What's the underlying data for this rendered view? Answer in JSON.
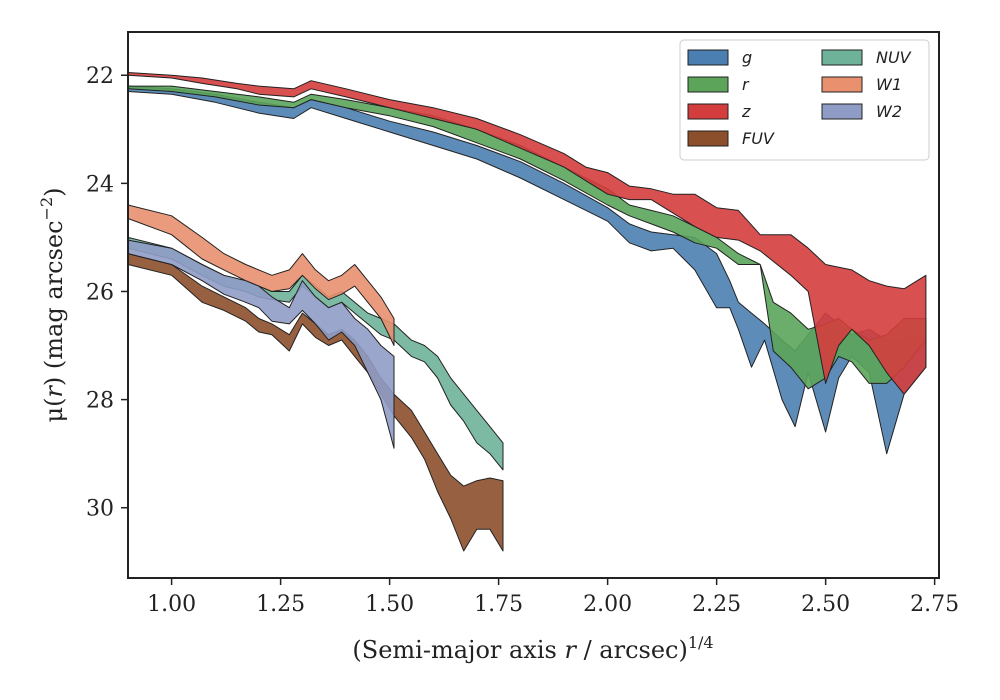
{
  "chart_data": {
    "type": "area",
    "xlabel": "(Semi-major axis r / arcsec)",
    "xlabel_parts": {
      "prefix": "(Semi-major axis ",
      "var": "r",
      "mid": " / arcsec)",
      "sup": "1/4"
    },
    "ylabel": "μ(r) (mag arcsec⁻²)",
    "ylabel_parts": {
      "pre": "μ(",
      "var": "r",
      "post": ") (mag arcsec",
      "sup": "−2",
      "end": ")"
    },
    "xlim": [
      0.9,
      2.76
    ],
    "ylim": [
      31.3,
      21.2
    ],
    "y_inverted": true,
    "xticks": [
      1.0,
      1.25,
      1.5,
      1.75,
      2.0,
      2.25,
      2.5,
      2.75
    ],
    "xtick_labels": [
      "1.00",
      "1.25",
      "1.50",
      "1.75",
      "2.00",
      "2.25",
      "2.50",
      "2.75"
    ],
    "yticks": [
      22,
      24,
      26,
      28,
      30
    ],
    "ytick_labels": [
      "22",
      "24",
      "26",
      "28",
      "30"
    ],
    "grid": false,
    "legend_position": "top-right",
    "legend_columns": 2,
    "series": [
      {
        "name": "FUV",
        "color": "#8c4f2c",
        "x": [
          0.9,
          1.0,
          1.07,
          1.12,
          1.17,
          1.2,
          1.23,
          1.27,
          1.3,
          1.33,
          1.36,
          1.39,
          1.42,
          1.45,
          1.48,
          1.51,
          1.55,
          1.58,
          1.61,
          1.64,
          1.67,
          1.7,
          1.73,
          1.76
        ],
        "lower": [
          25.3,
          25.5,
          25.9,
          26.1,
          26.3,
          26.5,
          26.6,
          26.8,
          26.4,
          26.6,
          26.8,
          26.7,
          26.9,
          27.2,
          27.6,
          27.9,
          28.2,
          28.6,
          29.0,
          29.4,
          29.6,
          29.5,
          29.45,
          29.5
        ],
        "upper": [
          25.5,
          25.7,
          26.2,
          26.35,
          26.55,
          26.75,
          26.8,
          27.1,
          26.6,
          26.85,
          27.0,
          26.9,
          27.2,
          27.5,
          27.9,
          28.3,
          28.7,
          29.1,
          29.7,
          30.2,
          30.8,
          30.4,
          30.4,
          30.8
        ]
      },
      {
        "name": "NUV",
        "color": "#6fb29a",
        "x": [
          0.9,
          1.0,
          1.07,
          1.12,
          1.17,
          1.2,
          1.23,
          1.27,
          1.3,
          1.33,
          1.36,
          1.39,
          1.42,
          1.45,
          1.48,
          1.51,
          1.55,
          1.58,
          1.61,
          1.64,
          1.67,
          1.7,
          1.73,
          1.76
        ],
        "lower": [
          25.0,
          25.2,
          25.5,
          25.7,
          25.8,
          25.9,
          26.0,
          26.0,
          25.7,
          25.9,
          26.1,
          26.0,
          26.2,
          26.4,
          26.5,
          26.6,
          26.9,
          27.0,
          27.2,
          27.6,
          27.9,
          28.2,
          28.5,
          28.8
        ],
        "upper": [
          25.2,
          25.4,
          25.7,
          25.9,
          26.0,
          26.1,
          26.15,
          26.2,
          25.9,
          26.1,
          26.3,
          26.2,
          26.4,
          26.6,
          26.8,
          26.9,
          27.2,
          27.3,
          27.6,
          28.1,
          28.4,
          28.8,
          29.0,
          29.3
        ]
      },
      {
        "name": "W1",
        "color": "#e9906f",
        "x": [
          0.9,
          1.0,
          1.07,
          1.12,
          1.17,
          1.2,
          1.23,
          1.27,
          1.3,
          1.33,
          1.36,
          1.39,
          1.42,
          1.45,
          1.48,
          1.51
        ],
        "lower": [
          24.4,
          24.6,
          25.0,
          25.3,
          25.5,
          25.6,
          25.7,
          25.6,
          25.3,
          25.6,
          25.8,
          25.7,
          25.5,
          25.8,
          26.1,
          26.5
        ],
        "upper": [
          24.65,
          24.95,
          25.4,
          25.6,
          25.8,
          25.9,
          26.0,
          25.95,
          25.7,
          25.95,
          26.15,
          26.05,
          25.9,
          26.2,
          26.5,
          27.0
        ]
      },
      {
        "name": "W2",
        "color": "#8f9cc5",
        "x": [
          0.9,
          1.0,
          1.07,
          1.12,
          1.17,
          1.2,
          1.23,
          1.27,
          1.3,
          1.33,
          1.36,
          1.39,
          1.42,
          1.45,
          1.48,
          1.51
        ],
        "lower": [
          25.05,
          25.2,
          25.5,
          25.7,
          25.8,
          25.9,
          26.1,
          26.3,
          25.8,
          26.1,
          26.3,
          26.2,
          26.5,
          26.7,
          27.0,
          27.2
        ],
        "upper": [
          25.3,
          25.5,
          25.8,
          26.05,
          26.2,
          26.3,
          26.55,
          26.6,
          26.35,
          26.6,
          26.9,
          26.75,
          27.0,
          27.5,
          28.0,
          28.9
        ]
      },
      {
        "name": "g",
        "color": "#4c7fb1",
        "x": [
          0.9,
          1.0,
          1.1,
          1.2,
          1.28,
          1.32,
          1.4,
          1.5,
          1.6,
          1.7,
          1.8,
          1.9,
          2.0,
          2.05,
          2.1,
          2.15,
          2.2,
          2.25,
          2.28,
          2.3,
          2.33,
          2.36,
          2.4,
          2.43,
          2.46,
          2.5,
          2.53,
          2.56,
          2.6,
          2.64,
          2.68,
          2.73
        ],
        "lower": [
          22.2,
          22.25,
          22.35,
          22.5,
          22.6,
          22.45,
          22.6,
          22.85,
          23.05,
          23.3,
          23.6,
          24.0,
          24.45,
          24.75,
          24.9,
          24.95,
          25.0,
          25.3,
          25.8,
          26.2,
          26.4,
          26.6,
          26.9,
          27.1,
          26.8,
          26.4,
          26.6,
          26.8,
          26.7,
          26.9,
          26.9,
          26.8
        ],
        "upper": [
          22.3,
          22.35,
          22.5,
          22.7,
          22.8,
          22.6,
          22.8,
          23.05,
          23.3,
          23.55,
          23.9,
          24.3,
          24.7,
          25.1,
          25.25,
          25.2,
          25.6,
          26.3,
          26.3,
          26.7,
          27.4,
          26.9,
          28.0,
          28.5,
          27.5,
          28.6,
          27.6,
          27.2,
          27.5,
          29.0,
          27.9,
          27.4
        ]
      },
      {
        "name": "r",
        "color": "#5ba45a",
        "x": [
          0.9,
          1.0,
          1.1,
          1.2,
          1.28,
          1.32,
          1.4,
          1.5,
          1.6,
          1.7,
          1.8,
          1.9,
          2.0,
          2.05,
          2.1,
          2.15,
          2.2,
          2.25,
          2.3,
          2.35,
          2.38,
          2.42,
          2.46,
          2.5,
          2.53,
          2.56,
          2.6,
          2.64,
          2.68,
          2.73
        ],
        "lower": [
          22.2,
          22.2,
          22.3,
          22.4,
          22.5,
          22.35,
          22.45,
          22.6,
          22.75,
          23.0,
          23.3,
          23.7,
          24.1,
          24.4,
          24.5,
          24.6,
          24.8,
          25.0,
          25.3,
          25.5,
          26.2,
          26.4,
          26.7,
          26.6,
          26.5,
          26.7,
          26.9,
          26.8,
          26.5,
          26.5
        ],
        "upper": [
          22.25,
          22.3,
          22.4,
          22.55,
          22.6,
          22.45,
          22.6,
          22.75,
          22.95,
          23.25,
          23.55,
          23.95,
          24.4,
          24.6,
          24.75,
          24.9,
          25.1,
          25.2,
          25.5,
          25.5,
          27.1,
          27.4,
          27.8,
          27.6,
          27.2,
          27.3,
          27.7,
          27.7,
          27.4,
          26.9
        ]
      },
      {
        "name": "z",
        "color": "#d43d3d",
        "x": [
          0.9,
          1.0,
          1.07,
          1.15,
          1.2,
          1.28,
          1.32,
          1.4,
          1.5,
          1.6,
          1.7,
          1.8,
          1.9,
          1.95,
          2.0,
          2.05,
          2.1,
          2.15,
          2.2,
          2.25,
          2.3,
          2.35,
          2.42,
          2.46,
          2.5,
          2.53,
          2.56,
          2.6,
          2.64,
          2.68,
          2.73
        ],
        "lower": [
          21.95,
          22.0,
          22.05,
          22.15,
          22.2,
          22.25,
          22.1,
          22.25,
          22.45,
          22.6,
          22.8,
          23.1,
          23.45,
          23.7,
          23.8,
          24.05,
          24.1,
          24.2,
          24.2,
          24.45,
          24.5,
          24.95,
          24.95,
          25.2,
          25.5,
          25.55,
          25.6,
          25.8,
          25.9,
          25.95,
          25.7
        ],
        "upper": [
          22.0,
          22.05,
          22.15,
          22.25,
          22.35,
          22.4,
          22.25,
          22.4,
          22.6,
          22.8,
          23.0,
          23.35,
          23.7,
          23.95,
          24.2,
          24.3,
          24.3,
          24.55,
          24.8,
          25.0,
          25.05,
          25.25,
          25.7,
          26.0,
          27.7,
          27.0,
          26.7,
          27.0,
          27.5,
          27.9,
          27.4
        ]
      }
    ],
    "legend_entries": [
      {
        "name": "g",
        "color": "#4c7fb1"
      },
      {
        "name": "NUV",
        "color": "#6fb29a"
      },
      {
        "name": "r",
        "color": "#5ba45a"
      },
      {
        "name": "W1",
        "color": "#e9906f"
      },
      {
        "name": "z",
        "color": "#d43d3d"
      },
      {
        "name": "W2",
        "color": "#8f9cc5"
      },
      {
        "name": "FUV",
        "color": "#8c4f2c"
      }
    ]
  }
}
